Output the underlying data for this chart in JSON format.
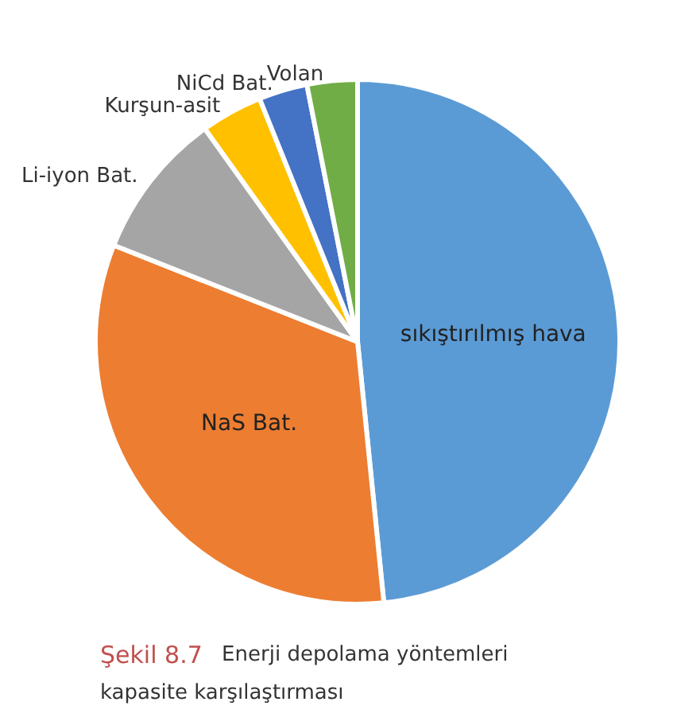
{
  "chart_data": {
    "type": "pie",
    "categories": [
      "sıkıştırılmış hava",
      "NaS Bat.",
      "Li-iyon Bat.",
      "Kurşun-asit",
      "NiCd Bat.",
      "Volan"
    ],
    "values": [
      48.4,
      32.6,
      9.1,
      3.8,
      3.0,
      3.1
    ],
    "colors": [
      "#5b9bd5",
      "#ed7d31",
      "#a5a5a5",
      "#ffc000",
      "#4472c4",
      "#70ad47"
    ],
    "legend": false,
    "annotations": [
      "Şekil 8.7",
      "Enerji depolama yöntemleri kapasite karşılaştırması"
    ]
  }
}
